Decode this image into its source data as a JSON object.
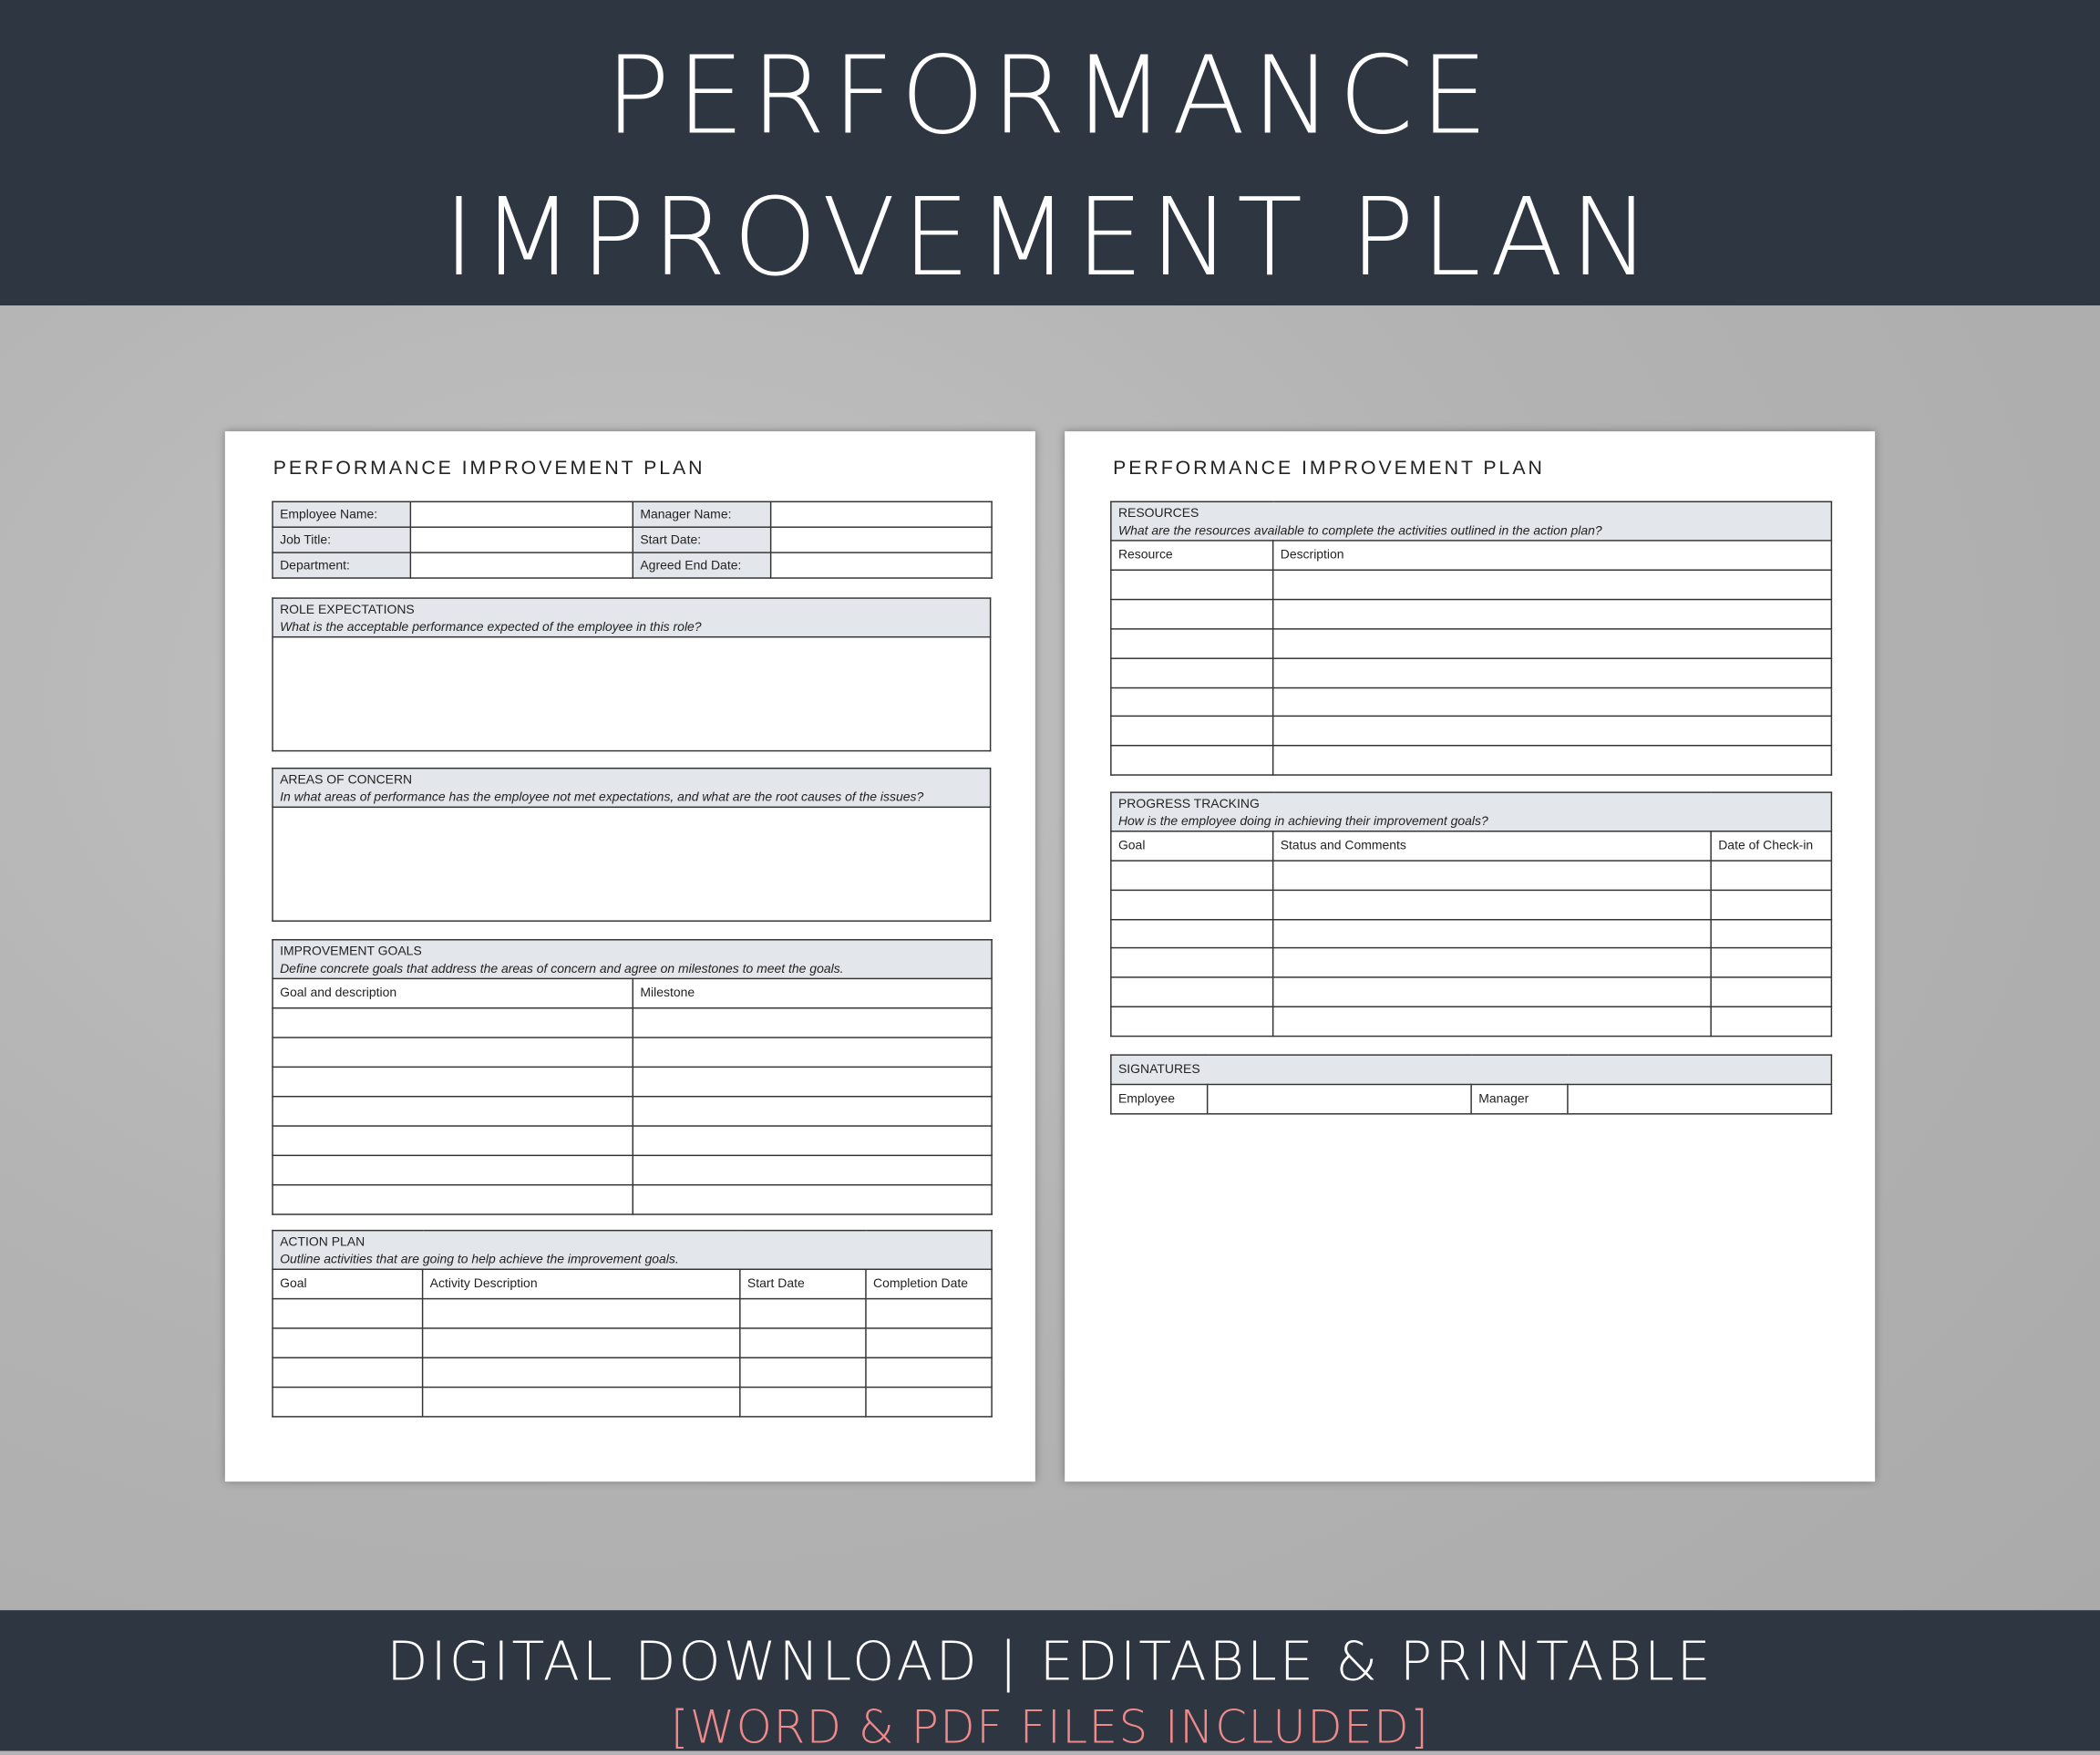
{
  "banner": {
    "line1": "PERFORMANCE",
    "line2": "IMPROVEMENT PLAN"
  },
  "footer": {
    "line1": "DIGITAL DOWNLOAD | EDITABLE & PRINTABLE",
    "line2": "[WORD & PDF FILES INCLUDED]",
    "accent_color": "#ee8a8a"
  },
  "colors": {
    "banner": "#2e3642",
    "header_fill": "#e3e6ea"
  },
  "page1": {
    "title": "PERFORMANCE IMPROVEMENT PLAN",
    "info": {
      "employee_name": "Employee Name:",
      "job_title": "Job Title:",
      "department": "Department:",
      "manager_name": "Manager Name:",
      "start_date": "Start Date:",
      "agreed_end_date": "Agreed End Date:"
    },
    "role": {
      "heading": "ROLE EXPECTATIONS",
      "prompt": "What is the acceptable performance expected of the employee in this role?"
    },
    "concern": {
      "heading": "AREAS OF CONCERN",
      "prompt": "In what areas of performance has the employee not met expectations, and what are the root causes of the issues?"
    },
    "goals": {
      "heading": "IMPROVEMENT GOALS",
      "prompt": "Define concrete goals that address the areas of concern and agree on milestones to meet the goals.",
      "columns": [
        "Goal and description",
        "Milestone"
      ]
    },
    "action": {
      "heading": "ACTION PLAN",
      "prompt": "Outline activities that are going to help achieve the improvement goals.",
      "columns": [
        "Goal",
        "Activity Description",
        "Start Date",
        "Completion Date"
      ]
    }
  },
  "page2": {
    "title": "PERFORMANCE IMPROVEMENT PLAN",
    "resources": {
      "heading": "RESOURCES",
      "prompt": "What are the resources available to complete the activities outlined in the action plan?",
      "columns": [
        "Resource",
        "Description"
      ]
    },
    "progress": {
      "heading": "PROGRESS TRACKING",
      "prompt": "How is the employee doing in achieving their improvement goals?",
      "columns": [
        "Goal",
        "Status and Comments",
        "Date of Check-in"
      ]
    },
    "signatures": {
      "heading": "SIGNATURES",
      "employee": "Employee",
      "manager": "Manager"
    }
  }
}
